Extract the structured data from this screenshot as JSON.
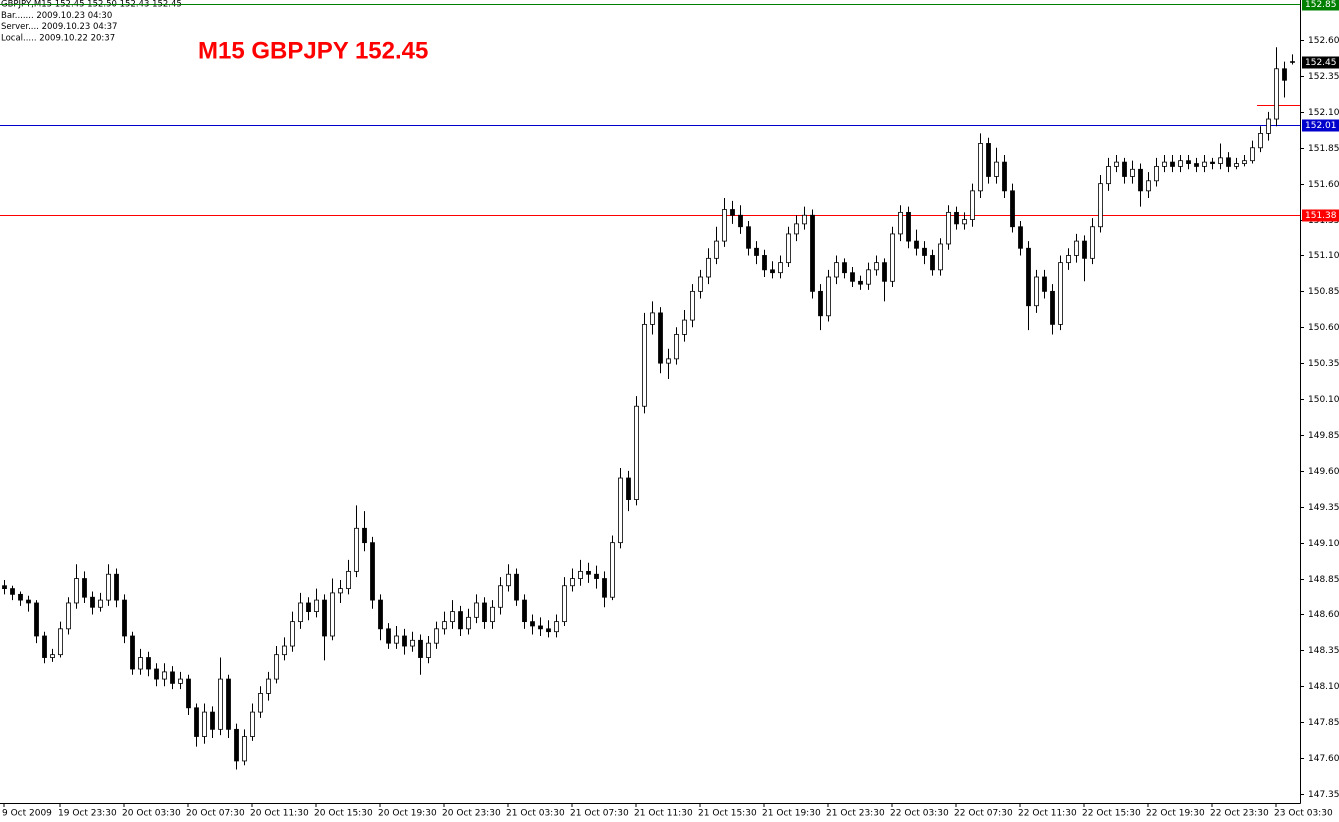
{
  "chart_data": {
    "type": "candlestick",
    "title": "M15 GBPJPY 152.45",
    "info_lines": [
      "GBPJPY,M15  152.45 152.50 152.43 152.45",
      "Bar....... 2009.10.23 04:30",
      "Server.... 2009.10.23 04:37",
      "Local..... 2009.10.22 20:37"
    ],
    "bull_color": "#ffffff",
    "bear_color": "#000000",
    "wick_color": "#000000",
    "ylim": [
      147.287,
      152.879
    ],
    "yticks": [
      147.35,
      {
        "value": 147.6,
        "label": "147.60"
      },
      147.85,
      {
        "value": 148.1,
        "label": "148.10"
      },
      148.35,
      {
        "value": 148.6,
        "label": "148.60"
      },
      148.85,
      {
        "value": 149.1,
        "label": "149.10"
      },
      149.35,
      {
        "value": 149.6,
        "label": "149.60"
      },
      149.85,
      {
        "value": 150.1,
        "label": "150.10"
      },
      150.35,
      {
        "value": 150.6,
        "label": "150.60"
      },
      150.85,
      {
        "value": 151.1,
        "label": "151.10"
      },
      151.35,
      {
        "value": 151.6,
        "label": "151.60"
      },
      151.85,
      {
        "value": 152.1,
        "label": "152.10"
      },
      152.35,
      {
        "value": 152.6,
        "label": "152.60"
      }
    ],
    "xticks": [
      {
        "value": 0,
        "label": "9 Oct 2009"
      },
      {
        "value": 7,
        "label": "19 Oct 23:30"
      },
      {
        "value": 15,
        "label": "20 Oct 03:30"
      },
      {
        "value": 23,
        "label": "20 Oct 07:30"
      },
      {
        "value": 31,
        "label": "20 Oct 11:30"
      },
      {
        "value": 39,
        "label": "20 Oct 15:30"
      },
      {
        "value": 47,
        "label": "20 Oct 19:30"
      },
      {
        "value": 55,
        "label": "20 Oct 23:30"
      },
      {
        "value": 63,
        "label": "21 Oct 03:30"
      },
      {
        "value": 71,
        "label": "21 Oct 07:30"
      },
      {
        "value": 79,
        "label": "21 Oct 11:30"
      },
      {
        "value": 87,
        "label": "21 Oct 15:30"
      },
      {
        "value": 95,
        "label": "21 Oct 19:30"
      },
      {
        "value": 103,
        "label": "21 Oct 23:30"
      },
      {
        "value": 111,
        "label": "22 Oct 03:30"
      },
      {
        "value": 119,
        "label": "22 Oct 07:30"
      },
      {
        "value": 127,
        "label": "22 Oct 11:30"
      },
      {
        "value": 135,
        "label": "22 Oct 15:30"
      },
      {
        "value": 143,
        "label": "22 Oct 19:30"
      },
      {
        "value": 151,
        "label": "22 Oct 23:30"
      },
      {
        "value": 159,
        "label": "23 Oct 03:30"
      }
    ],
    "levels": [
      {
        "value": 152.85,
        "color": "#008000"
      },
      {
        "value": 152.01,
        "color": "#0000cc"
      },
      {
        "value": 151.38,
        "color": "#ff0000"
      }
    ],
    "segment": {
      "value": 152.15,
      "color": "#ff0000"
    },
    "open": [
      148.8,
      148.78,
      148.74,
      148.7,
      148.68,
      148.45,
      148.3,
      148.32,
      148.5,
      148.68,
      148.85,
      148.72,
      148.65,
      148.7,
      148.88,
      148.7,
      148.45,
      148.22,
      148.3,
      148.22,
      148.15,
      148.2,
      148.12,
      148.15,
      147.95,
      147.75,
      147.92,
      147.8,
      148.15,
      147.8,
      147.58,
      147.75,
      147.92,
      148.05,
      148.15,
      148.32,
      148.38,
      148.55,
      148.68,
      148.62,
      148.7,
      148.45,
      148.75,
      148.78,
      148.9,
      149.2,
      149.1,
      148.7,
      148.5,
      148.4,
      148.45,
      148.38,
      148.42,
      148.3,
      148.4,
      148.5,
      148.55,
      148.62,
      148.5,
      148.58,
      148.68,
      148.55,
      148.65,
      148.8,
      148.88,
      148.7,
      148.55,
      148.52,
      148.5,
      148.48,
      148.55,
      148.8,
      148.85,
      148.9,
      148.88,
      148.85,
      148.72,
      149.1,
      149.55,
      149.4,
      150.05,
      150.62,
      150.7,
      150.35,
      150.38,
      150.55,
      150.65,
      150.85,
      150.95,
      151.08,
      151.2,
      151.42,
      151.38,
      151.3,
      151.15,
      151.1,
      151.0,
      150.98,
      151.05,
      151.25,
      151.32,
      151.38,
      150.85,
      150.68,
      150.95,
      151.05,
      150.98,
      150.92,
      150.9,
      151.0,
      151.05,
      150.92,
      151.25,
      151.4,
      151.2,
      151.15,
      151.1,
      151.0,
      151.18,
      151.4,
      151.32,
      151.35,
      151.55,
      151.88,
      151.65,
      151.75,
      151.55,
      151.3,
      151.15,
      150.75,
      150.95,
      150.85,
      150.62,
      151.05,
      151.1,
      151.2,
      151.08,
      151.3,
      151.6,
      151.72,
      151.75,
      151.65,
      151.7,
      151.55,
      151.62,
      151.72,
      151.75,
      151.72,
      151.76,
      151.74,
      151.72,
      151.75,
      151.74,
      151.78,
      151.72,
      151.74,
      151.76,
      151.85,
      151.95,
      152.05,
      152.4,
      152.45
    ],
    "high": [
      148.84,
      148.8,
      148.76,
      148.73,
      148.7,
      148.48,
      148.36,
      148.55,
      148.72,
      148.95,
      148.9,
      148.76,
      148.75,
      148.95,
      148.92,
      148.74,
      148.48,
      148.36,
      148.34,
      148.26,
      148.26,
      148.24,
      148.2,
      148.18,
      147.98,
      147.98,
      147.96,
      148.3,
      148.18,
      147.84,
      147.8,
      147.98,
      148.1,
      148.2,
      148.38,
      148.44,
      148.62,
      148.75,
      148.72,
      148.78,
      148.74,
      148.85,
      148.84,
      148.98,
      149.36,
      149.32,
      149.14,
      148.74,
      148.54,
      148.52,
      148.5,
      148.48,
      148.46,
      148.45,
      148.55,
      148.62,
      148.7,
      148.66,
      148.64,
      148.74,
      148.72,
      148.7,
      148.86,
      148.95,
      148.92,
      148.74,
      148.6,
      148.58,
      148.56,
      148.6,
      148.86,
      148.92,
      148.98,
      148.96,
      148.94,
      148.9,
      149.15,
      149.62,
      149.6,
      150.12,
      150.7,
      150.78,
      150.74,
      150.45,
      150.6,
      150.72,
      150.9,
      151.0,
      151.15,
      151.3,
      151.5,
      151.48,
      151.45,
      151.34,
      151.2,
      151.14,
      151.06,
      151.1,
      151.3,
      151.38,
      151.44,
      151.42,
      150.9,
      151.0,
      151.1,
      151.08,
      151.02,
      150.96,
      151.05,
      151.1,
      151.08,
      151.3,
      151.45,
      151.44,
      151.28,
      151.2,
      151.14,
      151.22,
      151.45,
      151.44,
      151.4,
      151.6,
      151.95,
      151.92,
      151.85,
      151.8,
      151.6,
      151.34,
      151.2,
      151.0,
      151.0,
      150.9,
      151.1,
      151.15,
      151.25,
      151.24,
      151.36,
      151.66,
      151.78,
      151.8,
      151.78,
      151.76,
      151.74,
      151.68,
      151.78,
      151.8,
      151.8,
      151.8,
      151.8,
      151.78,
      151.8,
      151.78,
      151.88,
      151.82,
      151.78,
      151.8,
      151.9,
      152.0,
      152.1,
      152.55,
      152.45,
      152.5
    ],
    "low": [
      148.74,
      148.7,
      148.66,
      148.62,
      148.4,
      148.26,
      148.27,
      148.3,
      148.46,
      148.64,
      148.68,
      148.6,
      148.62,
      148.66,
      148.65,
      148.4,
      148.18,
      148.18,
      148.17,
      148.1,
      148.1,
      148.08,
      148.08,
      147.9,
      147.68,
      147.7,
      147.74,
      147.76,
      147.74,
      147.52,
      147.55,
      147.72,
      147.88,
      148.0,
      148.12,
      148.28,
      148.34,
      148.5,
      148.56,
      148.58,
      148.28,
      148.42,
      148.68,
      148.74,
      148.86,
      149.04,
      148.64,
      148.42,
      148.36,
      148.36,
      148.32,
      148.34,
      148.18,
      148.26,
      148.36,
      148.46,
      148.5,
      148.45,
      148.46,
      148.54,
      148.5,
      148.5,
      148.6,
      148.76,
      148.66,
      148.5,
      148.46,
      148.45,
      148.44,
      148.44,
      148.52,
      148.76,
      148.8,
      148.82,
      148.78,
      148.65,
      148.7,
      149.06,
      149.32,
      149.36,
      150.0,
      150.55,
      150.28,
      150.24,
      150.34,
      150.5,
      150.6,
      150.8,
      150.9,
      151.04,
      151.16,
      151.32,
      151.25,
      151.1,
      151.04,
      150.95,
      150.94,
      150.94,
      151.02,
      151.2,
      151.28,
      150.8,
      150.58,
      150.64,
      150.9,
      150.94,
      150.88,
      150.86,
      150.86,
      150.96,
      150.78,
      150.88,
      151.2,
      151.15,
      151.1,
      151.04,
      150.96,
      150.96,
      151.14,
      151.28,
      151.28,
      151.3,
      151.5,
      151.6,
      151.6,
      151.5,
      151.26,
      151.1,
      150.58,
      150.7,
      150.8,
      150.55,
      150.58,
      151.0,
      151.05,
      150.92,
      151.04,
      151.26,
      151.55,
      151.68,
      151.6,
      151.6,
      151.44,
      151.5,
      151.58,
      151.68,
      151.68,
      151.68,
      151.7,
      151.68,
      151.68,
      151.7,
      151.7,
      151.68,
      151.7,
      151.72,
      151.74,
      151.82,
      151.9,
      152.0,
      152.2,
      152.43
    ],
    "close": [
      148.78,
      148.74,
      148.7,
      148.68,
      148.45,
      148.3,
      148.32,
      148.5,
      148.68,
      148.85,
      148.72,
      148.65,
      148.7,
      148.88,
      148.7,
      148.45,
      148.22,
      148.3,
      148.22,
      148.15,
      148.2,
      148.12,
      148.15,
      147.95,
      147.75,
      147.92,
      147.8,
      148.15,
      147.8,
      147.58,
      147.75,
      147.92,
      148.05,
      148.15,
      148.32,
      148.38,
      148.55,
      148.68,
      148.62,
      148.7,
      148.45,
      148.75,
      148.78,
      148.9,
      149.2,
      149.1,
      148.7,
      148.5,
      148.4,
      148.45,
      148.38,
      148.42,
      148.3,
      148.4,
      148.5,
      148.55,
      148.62,
      148.5,
      148.58,
      148.68,
      148.55,
      148.65,
      148.8,
      148.88,
      148.7,
      148.55,
      148.52,
      148.5,
      148.48,
      148.55,
      148.8,
      148.85,
      148.9,
      148.88,
      148.85,
      148.72,
      149.1,
      149.55,
      149.4,
      150.05,
      150.62,
      150.7,
      150.35,
      150.38,
      150.55,
      150.65,
      150.85,
      150.95,
      151.08,
      151.2,
      151.42,
      151.38,
      151.3,
      151.15,
      151.1,
      151.0,
      150.98,
      151.05,
      151.25,
      151.32,
      151.38,
      150.85,
      150.68,
      150.95,
      151.05,
      150.98,
      150.92,
      150.9,
      151.0,
      151.05,
      150.92,
      151.25,
      151.4,
      151.2,
      151.15,
      151.1,
      151.0,
      151.18,
      151.4,
      151.32,
      151.35,
      151.55,
      151.88,
      151.65,
      151.75,
      151.55,
      151.3,
      151.15,
      150.75,
      150.95,
      150.85,
      150.62,
      151.05,
      151.1,
      151.2,
      151.08,
      151.3,
      151.6,
      151.72,
      151.75,
      151.65,
      151.7,
      151.55,
      151.62,
      151.72,
      151.75,
      151.72,
      151.76,
      151.74,
      151.72,
      151.75,
      151.74,
      151.78,
      151.72,
      151.74,
      151.76,
      151.85,
      151.95,
      152.05,
      152.4,
      152.32,
      152.45
    ]
  }
}
